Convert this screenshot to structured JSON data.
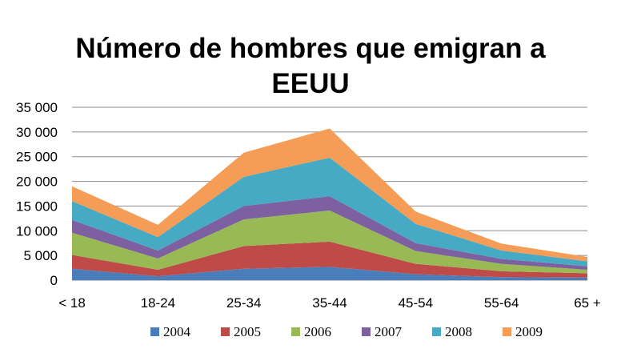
{
  "chart_data": {
    "type": "area",
    "stacked": true,
    "title_lines": [
      "Número de hombres que emigran a",
      "EEUU"
    ],
    "categories": [
      "< 18",
      "18-24",
      "25-34",
      "35-44",
      "45-54",
      "55-64",
      "65 +"
    ],
    "y_ticks": [
      "0",
      "5 000",
      "10 000",
      "15 000",
      "20 000",
      "25 000",
      "30 000",
      "35 000"
    ],
    "ylim": [
      0,
      35000
    ],
    "grid": true,
    "legend_position": "bottom",
    "series": [
      {
        "name": "2004",
        "color": "#4a7ebb",
        "values": [
          2300,
          800,
          2300,
          2700,
          1200,
          600,
          500
        ]
      },
      {
        "name": "2005",
        "color": "#be4b48",
        "values": [
          2800,
          1300,
          4600,
          5100,
          2100,
          1200,
          900
        ]
      },
      {
        "name": "2006",
        "color": "#98b954",
        "values": [
          4500,
          2300,
          5400,
          6300,
          2600,
          1500,
          700
        ]
      },
      {
        "name": "2007",
        "color": "#7d60a0",
        "values": [
          2600,
          1600,
          2700,
          2900,
          1600,
          1000,
          700
        ]
      },
      {
        "name": "2008",
        "color": "#46aac5",
        "values": [
          3800,
          2700,
          5900,
          7800,
          3900,
          1700,
          1000
        ]
      },
      {
        "name": "2009",
        "color": "#f59d56",
        "values": [
          3000,
          2500,
          4900,
          5900,
          2500,
          1400,
          900
        ]
      }
    ]
  }
}
